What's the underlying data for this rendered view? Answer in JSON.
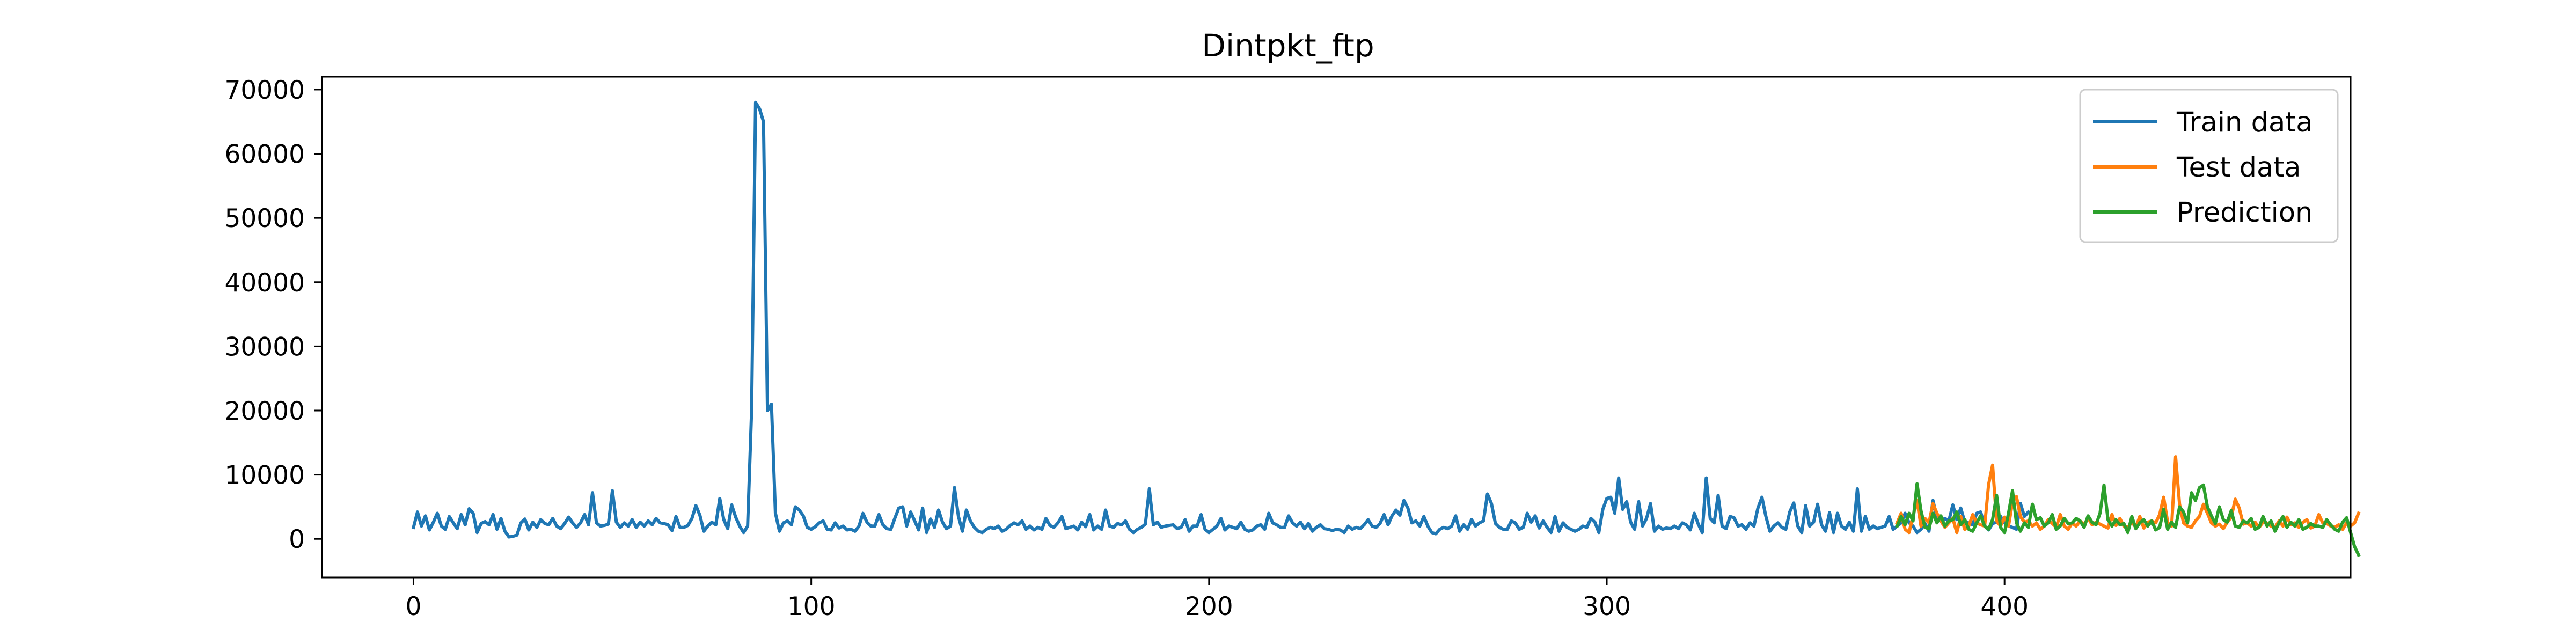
{
  "chart_data": {
    "type": "line",
    "title": "Dintpkt_ftp",
    "xlabel": "",
    "ylabel": "",
    "xlim": [
      -23,
      487
    ],
    "ylim": [
      -6000,
      72000
    ],
    "x_ticks": [
      0,
      100,
      200,
      300,
      400
    ],
    "y_ticks": [
      0,
      10000,
      20000,
      30000,
      40000,
      50000,
      60000,
      70000
    ],
    "grid": false,
    "legend_position": "top-right",
    "series": [
      {
        "name": "Train data",
        "color": "#1f77b4",
        "x_start": 0,
        "values": [
          1800,
          4200,
          2000,
          3600,
          1400,
          2600,
          4000,
          2000,
          1500,
          3500,
          2500,
          1600,
          3800,
          2200,
          4700,
          4000,
          1000,
          2400,
          2700,
          2200,
          3800,
          1500,
          3200,
          1200,
          300,
          400,
          600,
          2500,
          3100,
          1400,
          2600,
          1800,
          3000,
          2400,
          2200,
          3200,
          2000,
          1600,
          2400,
          3400,
          2500,
          1800,
          2500,
          3800,
          2200,
          7200,
          2500,
          2000,
          2100,
          2300,
          7500,
          2600,
          1800,
          2500,
          2000,
          3000,
          1800,
          2600,
          2000,
          2800,
          2200,
          3200,
          2500,
          2400,
          2200,
          1300,
          3500,
          1800,
          1800,
          2100,
          3200,
          5200,
          3700,
          1200,
          2000,
          2600,
          2200,
          6300,
          3000,
          1600,
          5300,
          3400,
          2000,
          1000,
          2000,
          20000,
          68000,
          67000,
          65000,
          20000,
          21000,
          4000,
          1200,
          2500,
          2800,
          2200,
          5000,
          4500,
          3600,
          1800,
          1500,
          1900,
          2500,
          2800,
          1500,
          1400,
          2500,
          1700,
          2000,
          1400,
          1500,
          1200,
          2000,
          4000,
          2600,
          2000,
          2000,
          3800,
          2200,
          1600,
          1500,
          3200,
          4800,
          5000,
          2000,
          4200,
          2800,
          1400,
          4800,
          1000,
          3100,
          1800,
          4500,
          2600,
          1600,
          2000,
          8000,
          3500,
          1200,
          4500,
          2800,
          1800,
          1200,
          1000,
          1500,
          1800,
          1600,
          2000,
          1200,
          1500,
          2100,
          2500,
          2200,
          2800,
          1500,
          2000,
          1400,
          1800,
          1500,
          3200,
          2100,
          1800,
          2500,
          3500,
          1600,
          1800,
          2000,
          1400,
          2600,
          1900,
          3800,
          1400,
          2000,
          1500,
          4500,
          2000,
          1800,
          2400,
          2200,
          2800,
          1500,
          1000,
          1500,
          1800,
          2300,
          7800,
          2200,
          2600,
          1800,
          2000,
          2100,
          2200,
          1600,
          1800,
          3000,
          1200,
          2000,
          2000,
          3800,
          1500,
          1000,
          1500,
          2000,
          3200,
          1400,
          2000,
          1800,
          1600,
          2600,
          1500,
          1200,
          1400,
          2000,
          2200,
          1500,
          4000,
          2500,
          2200,
          1800,
          1800,
          3600,
          2500,
          2000,
          2600,
          1600,
          2400,
          1200,
          1800,
          2200,
          1600,
          1500,
          1300,
          1500,
          1400,
          1000,
          2000,
          1500,
          1800,
          1600,
          2200,
          3000,
          2000,
          1800,
          2400,
          3800,
          2200,
          3600,
          4500,
          3700,
          6000,
          4800,
          2500,
          2800,
          2000,
          3500,
          2000,
          1000,
          800,
          1500,
          1800,
          1600,
          2000,
          3600,
          1200,
          2200,
          1500,
          3000,
          2000,
          2500,
          2800,
          7000,
          5500,
          2400,
          1800,
          1500,
          1500,
          2800,
          2500,
          1500,
          1800,
          4000,
          2600,
          3600,
          1700,
          2800,
          1800,
          1000,
          3500,
          1200,
          2500,
          1800,
          1500,
          1200,
          1500,
          2000,
          1800,
          3200,
          2600,
          1000,
          4600,
          6300,
          6500,
          4000,
          9500,
          4600,
          5800,
          2600,
          1500,
          5800,
          2000,
          3200,
          5500,
          1200,
          2000,
          1500,
          1700,
          1600,
          2000,
          1600,
          2500,
          2200,
          1400,
          4000,
          2300,
          1000,
          9500,
          3200,
          2500,
          6800,
          2000,
          1600,
          3500,
          3300,
          2000,
          2200,
          1500,
          2500,
          2000,
          4800,
          6500,
          3500,
          1200,
          2000,
          2500,
          1800,
          1500,
          4200,
          5600,
          2000,
          1000,
          5200,
          2000,
          2600,
          5400,
          2200,
          1200,
          4100,
          1000,
          4000,
          2000,
          1500,
          2600,
          1200,
          7800,
          1200,
          3500,
          1500,
          2000,
          1600,
          1800,
          2000,
          3500,
          1500,
          2000,
          2500,
          4000,
          2500,
          2000,
          1000,
          1500,
          2400,
          1200,
          6000,
          3300,
          2800,
          3200,
          2800,
          5300,
          3000,
          4800,
          2600,
          2500,
          2200,
          4000,
          4200,
          2000,
          1400,
          2400,
          2600,
          3500,
          2500,
          2000,
          1800,
          1500,
          5500,
          3500,
          4200
        ]
      },
      {
        "name": "Test data",
        "color": "#ff7f0e",
        "x_start": 373,
        "values": [
          2500,
          4000,
          1500,
          1000,
          3600,
          6000,
          2000,
          3200,
          2500,
          5500,
          4000,
          2800,
          1800,
          2500,
          3200,
          1000,
          3500,
          1500,
          2000,
          3800,
          2500,
          2200,
          2000,
          8500,
          11500,
          2800,
          2000,
          3400,
          2000,
          5800,
          6600,
          3500,
          2600,
          2800,
          2000,
          2500,
          1500,
          2000,
          3000,
          2400,
          1800,
          3800,
          2000,
          1500,
          2500,
          2000,
          2800,
          2200,
          3300,
          2200,
          2600,
          2300,
          2000,
          1700,
          3800,
          2100,
          3200,
          2000,
          1800,
          2600,
          1800,
          3500,
          1700,
          2600,
          2800,
          2500,
          3800,
          6500,
          2600,
          2000,
          12800,
          5400,
          2500,
          2000,
          1800,
          2800,
          3500,
          5400,
          4000,
          2500,
          2000,
          2300,
          1600,
          2600,
          3400,
          6200,
          4800,
          2300,
          2500,
          2000,
          2600,
          1800,
          2600,
          2400,
          2000,
          1800,
          2800,
          2000,
          3400,
          2200,
          2500,
          1800,
          2600,
          3000,
          1700,
          2000,
          3800,
          2500,
          2400,
          2000,
          1800,
          2200,
          1500,
          2500,
          2000,
          2500,
          4000
        ]
      },
      {
        "name": "Prediction",
        "color": "#2ca02c",
        "x_start": 373,
        "values": [
          2000,
          3500,
          2200,
          4000,
          2800,
          8600,
          4400,
          1800,
          1600,
          4000,
          2500,
          3600,
          2000,
          2800,
          3000,
          4200,
          2200,
          3000,
          1500,
          1200,
          2500,
          3600,
          2000,
          1500,
          3000,
          6800,
          1800,
          1000,
          4000,
          7500,
          2500,
          1200,
          2500,
          1800,
          5400,
          3000,
          3300,
          2000,
          2500,
          3800,
          1500,
          2000,
          3200,
          2400,
          2500,
          3200,
          2800,
          1800,
          3600,
          2600,
          2200,
          4000,
          8400,
          3000,
          2000,
          3000,
          2200,
          2400,
          1000,
          3500,
          1600,
          2500,
          3000,
          2000,
          2800,
          1400,
          1800,
          4600,
          1500,
          2600,
          1800,
          5000,
          4200,
          2500,
          7200,
          6000,
          8000,
          8400,
          5000,
          3600,
          2400,
          5000,
          3000,
          2600,
          4400,
          2000,
          1800,
          2800,
          2500,
          3200,
          1500,
          1800,
          3500,
          2000,
          2800,
          1200,
          2500,
          3500,
          1800,
          2600,
          2000,
          3000,
          1500,
          1800,
          2400,
          2000,
          2000,
          1800,
          3000,
          2200,
          1500,
          1200,
          2600,
          3300,
          1000,
          -1200,
          -2500
        ]
      }
    ]
  }
}
